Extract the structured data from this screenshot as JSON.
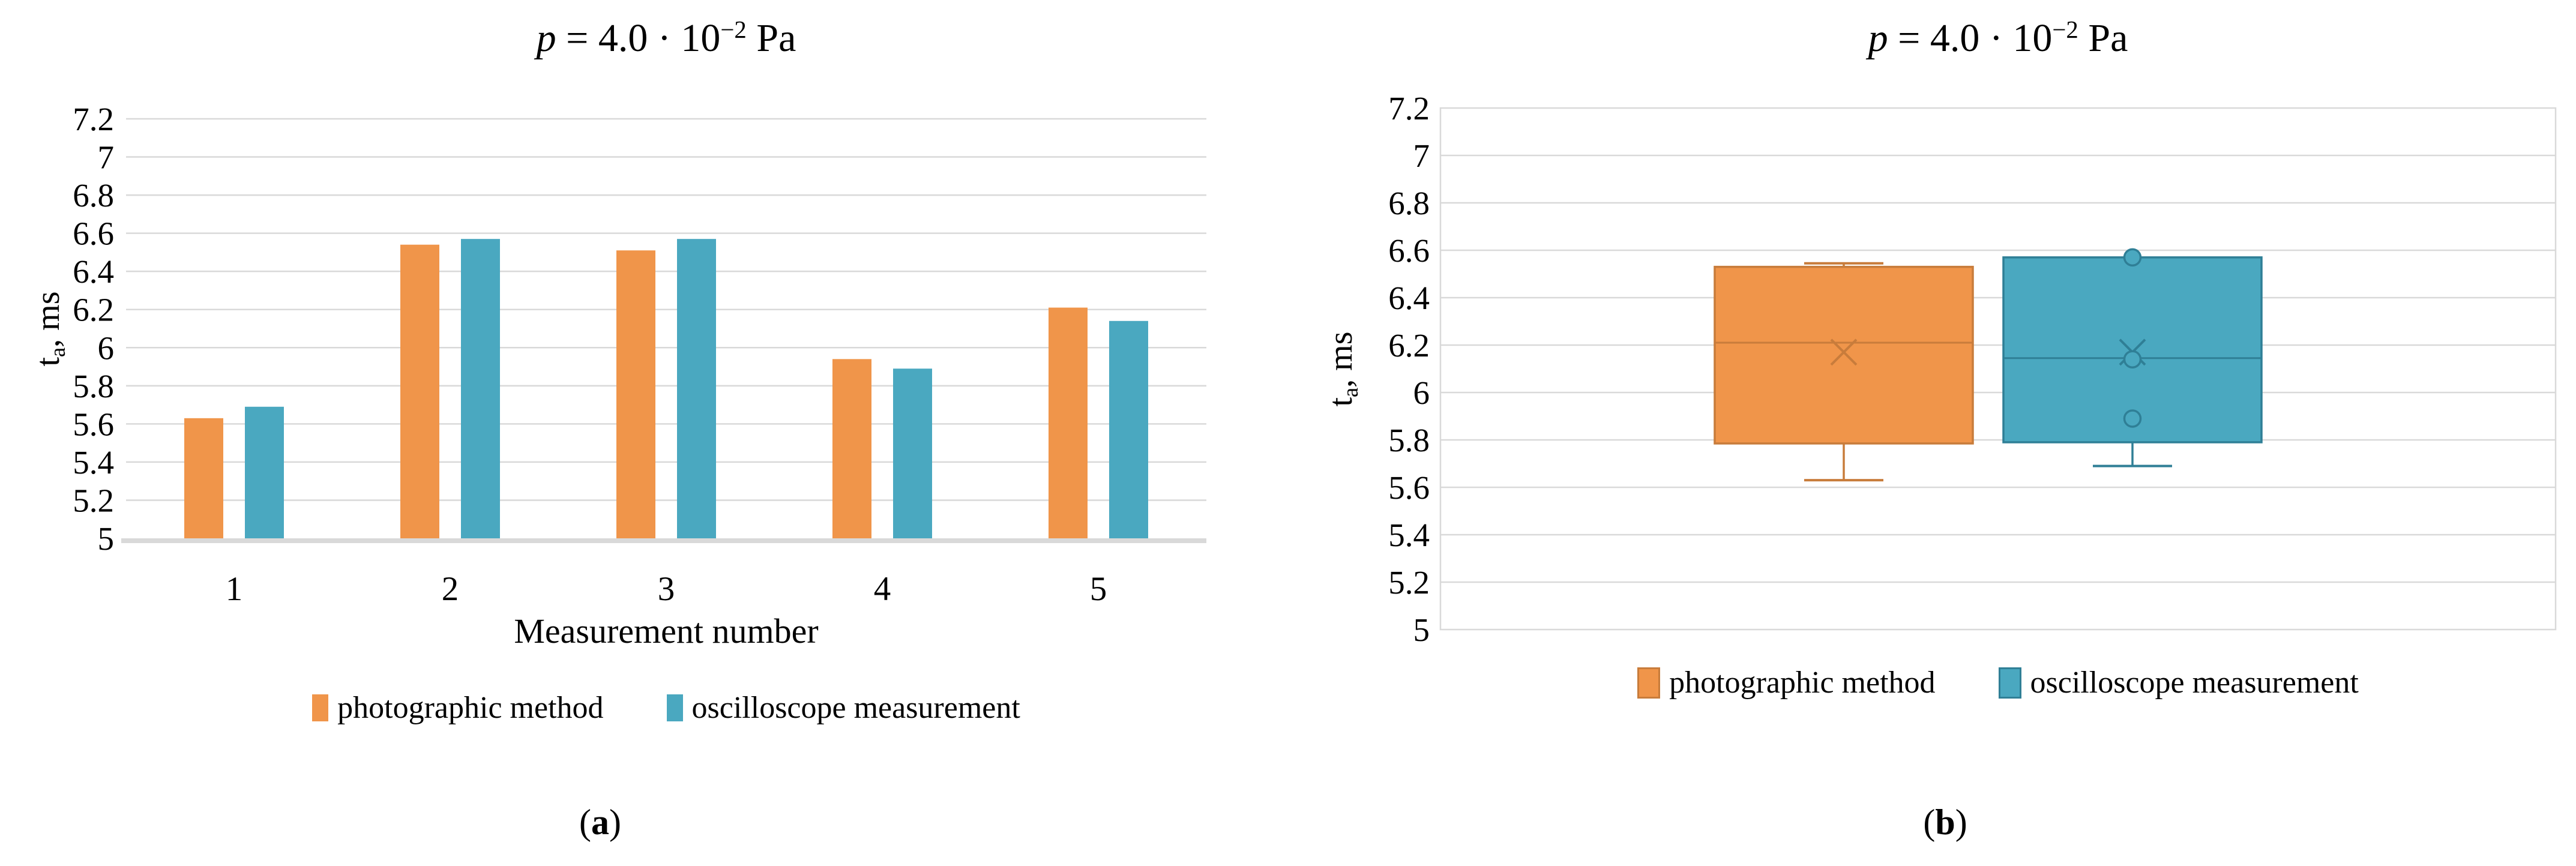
{
  "figure": {
    "title": {
      "var": "p",
      "rest": " = 4.0 · 10",
      "sup": "−2",
      "unit": " Pa"
    },
    "y_axis_title": {
      "main": "t",
      "sub": "a",
      "rest": ", ms"
    },
    "x_axis_title": "Measurement number",
    "captions": {
      "open": "(",
      "a": "a",
      "b": "b",
      "close": ")"
    },
    "colors": {
      "photographic_fill": "#F0954A",
      "photographic_border": "#C87C3B",
      "oscilloscope_fill": "#4AA8C0",
      "oscilloscope_border": "#2F7F96",
      "gridline": "#D9D9D9",
      "axis_line": "#D9D9D9",
      "text": "#000000",
      "background": "#FFFFFF"
    }
  },
  "legend": {
    "items": [
      {
        "label": "photographic method",
        "color": "#F0954A",
        "border": "#C87C3B"
      },
      {
        "label": "oscilloscope measurement",
        "color": "#4AA8C0",
        "border": "#2F7F96"
      }
    ]
  },
  "chart_data": [
    {
      "type": "bar",
      "title": "p = 4.0 · 10⁻² Pa",
      "xlabel": "Measurement number",
      "ylabel": "ta, ms",
      "ylim": [
        5.0,
        7.2
      ],
      "ytick_step": 0.2,
      "grid": true,
      "legend_position": "bottom",
      "categories": [
        "1",
        "2",
        "3",
        "4",
        "5"
      ],
      "series": [
        {
          "name": "photographic method",
          "color": "#F0954A",
          "values": [
            5.63,
            6.54,
            6.51,
            5.94,
            6.21
          ]
        },
        {
          "name": "oscilloscope measurement",
          "color": "#4AA8C0",
          "values": [
            5.69,
            6.57,
            6.57,
            5.89,
            6.14
          ]
        }
      ]
    },
    {
      "type": "box",
      "title": "p = 4.0 · 10⁻² Pa",
      "ylabel": "ta, ms",
      "ylim": [
        5.0,
        7.2
      ],
      "ytick_step": 0.2,
      "grid": true,
      "legend_position": "bottom",
      "series": [
        {
          "name": "photographic method",
          "color": "#F0954A",
          "border": "#C87C3B",
          "min": 5.63,
          "q1": 5.785,
          "median": 6.21,
          "q3": 6.53,
          "max": 6.545,
          "mean": 6.17,
          "points": []
        },
        {
          "name": "oscilloscope measurement",
          "color": "#4AA8C0",
          "border": "#2F7F96",
          "min": 5.69,
          "q1": 5.79,
          "median": 6.145,
          "q3": 6.57,
          "max": 6.57,
          "mean": 6.17,
          "points": [
            6.57,
            6.14,
            5.89
          ]
        }
      ]
    }
  ]
}
